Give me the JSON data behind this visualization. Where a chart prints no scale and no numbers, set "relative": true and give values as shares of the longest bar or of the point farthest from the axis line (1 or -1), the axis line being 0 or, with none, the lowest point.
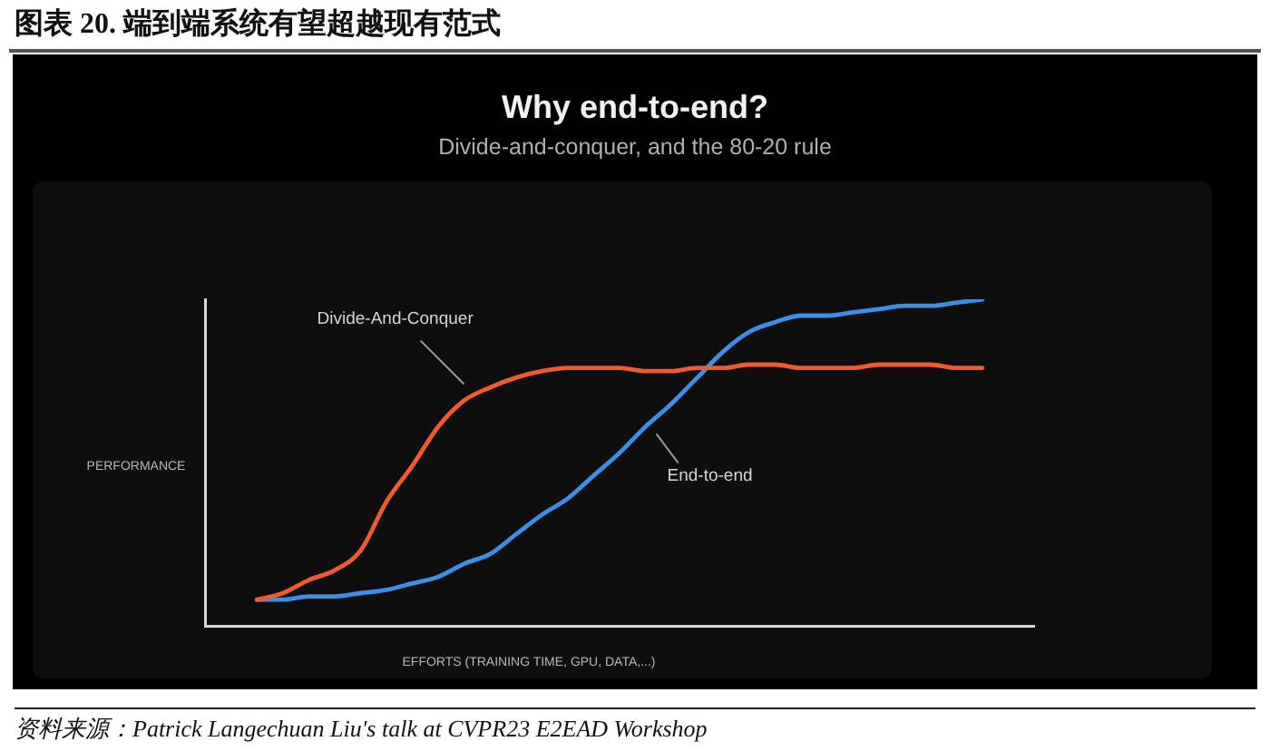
{
  "chart_data": {
    "type": "line",
    "title": "Why end-to-end?",
    "subtitle": "Divide-and-conquer, and the 80-20 rule",
    "xlabel": "EFFORTS (TRAINING TIME, GPU, DATA,...)",
    "ylabel": "PERFORMANCE",
    "annotations": [
      "图表 20. 端到端系统有望超越现有范式",
      "资料来源：Patrick Langechuan Liu's talk at CVPR23 E2EAD Workshop"
    ],
    "categories": [
      null,
      null,
      null,
      null,
      null,
      null,
      null,
      null,
      null,
      null,
      null,
      null,
      null,
      null,
      null,
      null,
      null,
      null,
      null,
      null,
      null,
      null,
      null,
      null,
      null,
      null,
      null,
      null,
      null,
      null,
      null,
      null,
      null
    ],
    "relative": true,
    "series": [
      {
        "name": "Divide-And-Conquer",
        "color": "#ef5a2f",
        "values": [
          null,
          null,
          0.08,
          0.1,
          0.14,
          0.17,
          0.23,
          0.38,
          0.49,
          0.61,
          0.69,
          0.73,
          0.76,
          0.78,
          0.79,
          0.79,
          0.79,
          0.78,
          0.78,
          0.79,
          0.79,
          0.8,
          0.8,
          0.79,
          0.79,
          0.79,
          0.8,
          0.8,
          0.8,
          0.79,
          0.79,
          null,
          null
        ]
      },
      {
        "name": "End-to-end",
        "color": "#3d8ee6",
        "values": [
          null,
          null,
          0.08,
          0.08,
          0.09,
          0.09,
          0.1,
          0.11,
          0.13,
          0.15,
          0.19,
          0.22,
          0.28,
          0.34,
          0.39,
          0.46,
          0.53,
          0.61,
          0.68,
          0.76,
          0.84,
          0.9,
          0.93,
          0.95,
          0.95,
          0.96,
          0.97,
          0.98,
          0.98,
          0.99,
          1.0,
          null,
          null
        ]
      }
    ],
    "legend": false,
    "grid": false,
    "tick_labels": false,
    "marker": "none",
    "line_style": "solid"
  }
}
